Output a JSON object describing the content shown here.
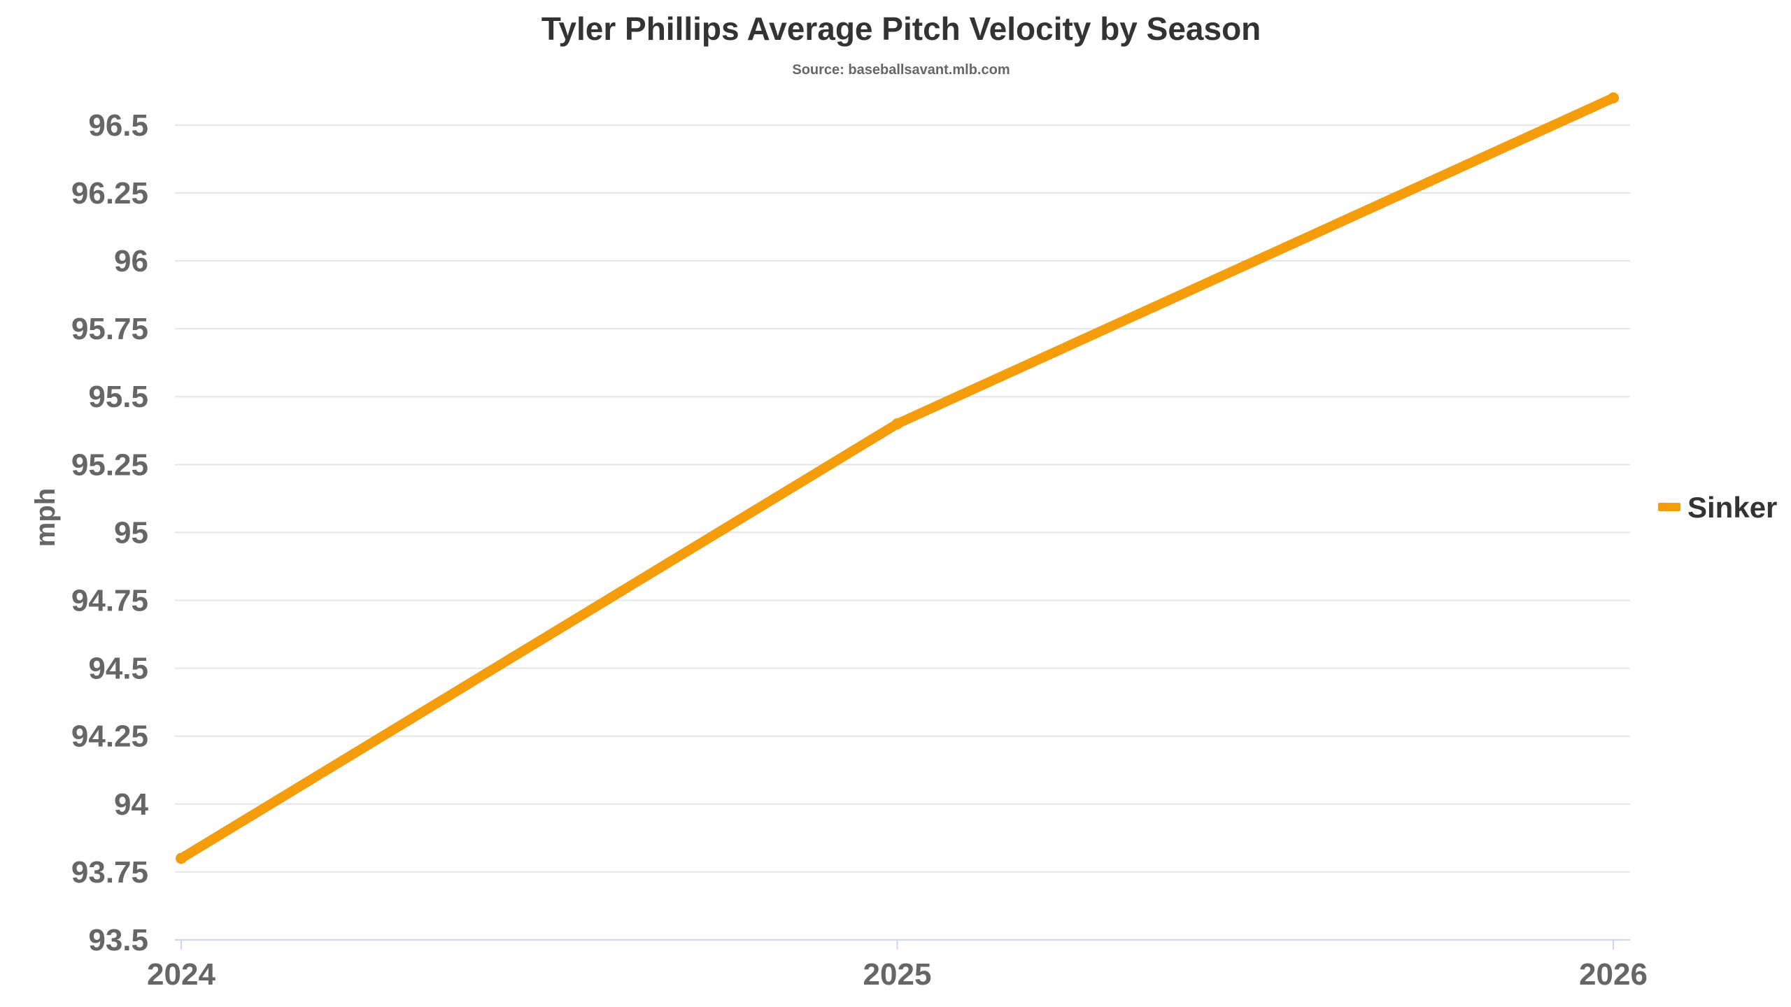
{
  "chart_data": {
    "type": "line",
    "title": "Tyler Phillips Average Pitch Velocity by Season",
    "subtitle": "Source: baseballsavant.mlb.com",
    "xlabel": "",
    "ylabel": "mph",
    "x": [
      "2024",
      "2025",
      "2026"
    ],
    "ylim": [
      93.5,
      96.6
    ],
    "yticks": [
      "93.5",
      "93.75",
      "94",
      "94.25",
      "94.5",
      "94.75",
      "95",
      "95.25",
      "95.5",
      "95.75",
      "96",
      "96.25",
      "96.5"
    ],
    "grid": true,
    "legend_position": "right",
    "series": [
      {
        "name": "Sinker",
        "color": "#f59c0b",
        "values": [
          93.8,
          95.4,
          96.6
        ]
      }
    ]
  }
}
